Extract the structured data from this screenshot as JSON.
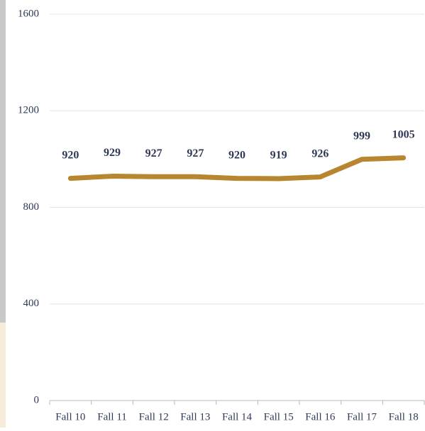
{
  "chart_data": {
    "type": "line",
    "categories": [
      "Fall 10",
      "Fall 11",
      "Fall 12",
      "Fall 13",
      "Fall 14",
      "Fall 15",
      "Fall 16",
      "Fall 17",
      "Fall 18"
    ],
    "values": [
      920,
      929,
      927,
      927,
      920,
      919,
      926,
      999,
      1005
    ],
    "color": "#b8862e",
    "ylim": [
      0,
      1600
    ],
    "yticks": [
      0,
      400,
      800,
      1200,
      1600
    ],
    "grid": true
  }
}
